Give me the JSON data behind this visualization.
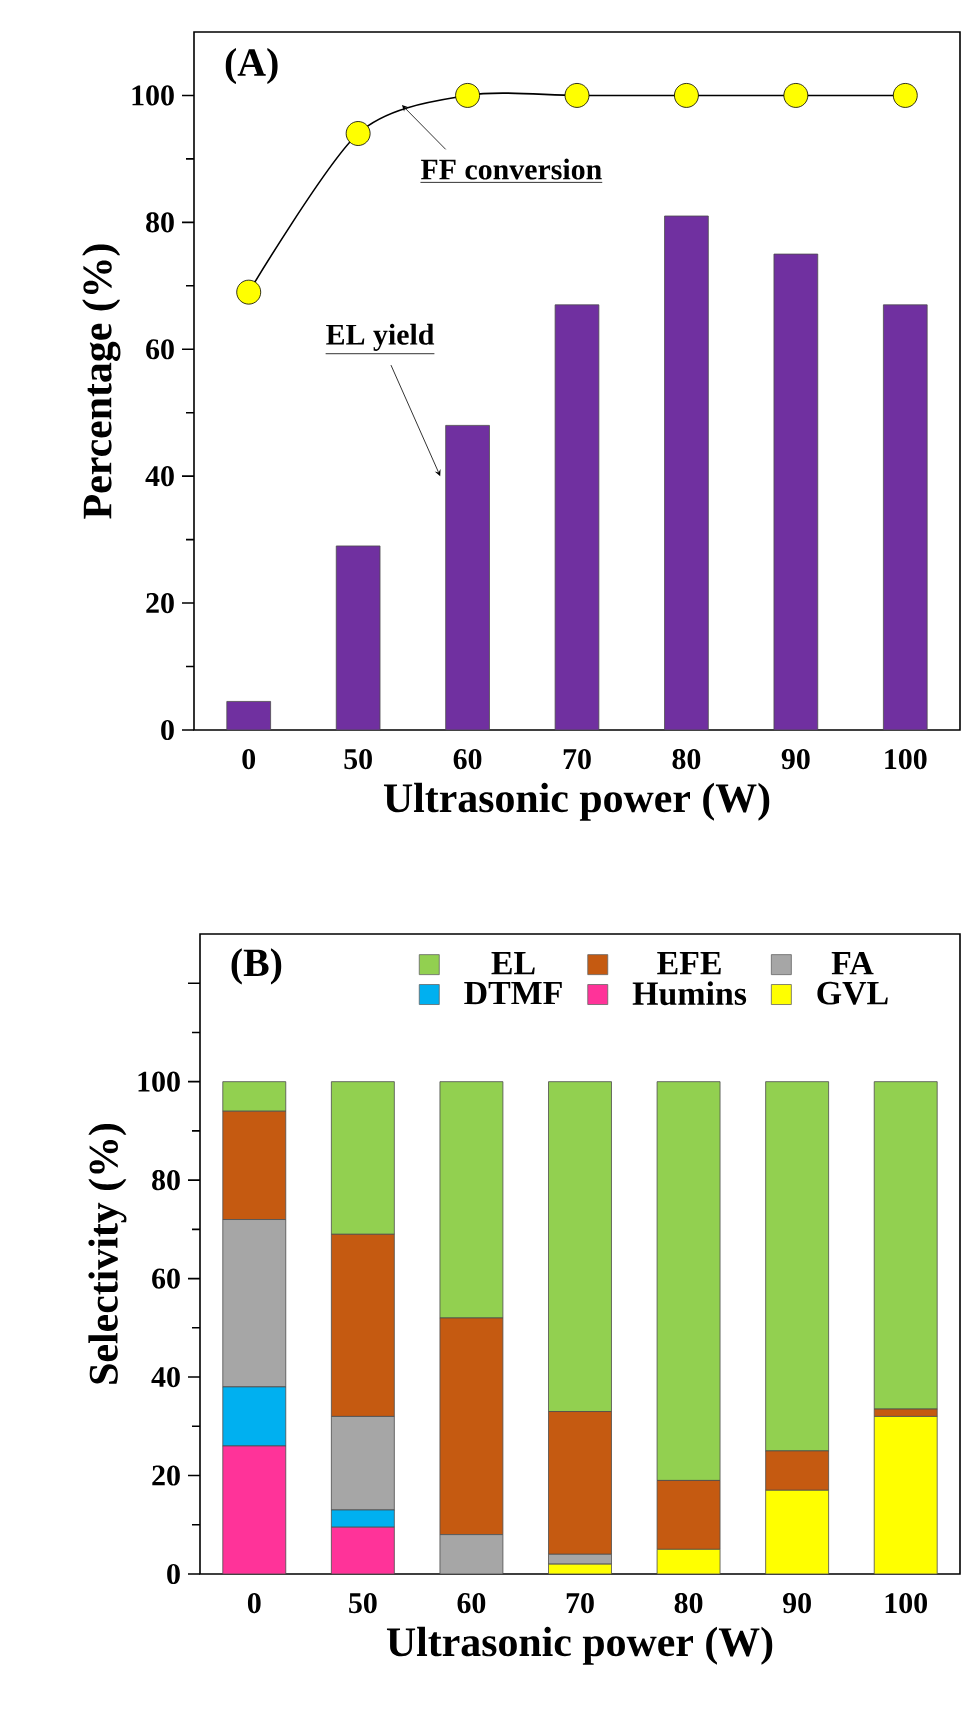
{
  "chart_data": [
    {
      "type": "bar",
      "title": "(A)",
      "xlabel": "Ultrasonic power (W)",
      "ylabel": "Percentage (%)",
      "categories": [
        "0",
        "50",
        "60",
        "70",
        "80",
        "90",
        "100"
      ],
      "series": [
        {
          "name": "EL yield",
          "type": "bar",
          "color": "#7030a0",
          "values": [
            4.5,
            29,
            48,
            67,
            81,
            75,
            67
          ]
        },
        {
          "name": "FF conversion",
          "type": "line",
          "color": "#ffff00",
          "marker": "circle",
          "values": [
            69,
            94,
            100,
            100,
            100,
            100,
            100
          ]
        }
      ],
      "ylim": [
        0,
        110
      ],
      "yticks": [
        0,
        20,
        40,
        60,
        80,
        100
      ]
    },
    {
      "type": "bar",
      "stacked": true,
      "title": "(B)",
      "xlabel": "Ultrasonic power (W)",
      "ylabel": "Selectivity (%)",
      "categories": [
        "0",
        "50",
        "60",
        "70",
        "80",
        "90",
        "100"
      ],
      "series": [
        {
          "name": "GVL",
          "color": "#ffff00",
          "values": [
            0,
            0,
            0,
            2,
            5,
            17,
            32
          ]
        },
        {
          "name": "Humins",
          "color": "#ff3399",
          "values": [
            26,
            9.5,
            0,
            0,
            0,
            0,
            0
          ]
        },
        {
          "name": "DTMF",
          "color": "#00b0f0",
          "values": [
            12,
            3.5,
            0,
            0,
            0,
            0,
            0
          ]
        },
        {
          "name": "FA",
          "color": "#a6a6a6",
          "values": [
            34,
            19,
            8,
            2,
            0,
            0,
            0
          ]
        },
        {
          "name": "EFE",
          "color": "#c55a11",
          "values": [
            22,
            37,
            44,
            29,
            14,
            8,
            1.5
          ]
        },
        {
          "name": "EL",
          "color": "#92d050",
          "values": [
            6,
            31,
            48,
            67,
            81,
            75,
            66.5
          ]
        }
      ],
      "ylim": [
        0,
        130
      ],
      "yticks": [
        0,
        20,
        40,
        60,
        80,
        100,
        {
          "value": 120,
          "label": null
        }
      ],
      "legend": "top"
    }
  ]
}
